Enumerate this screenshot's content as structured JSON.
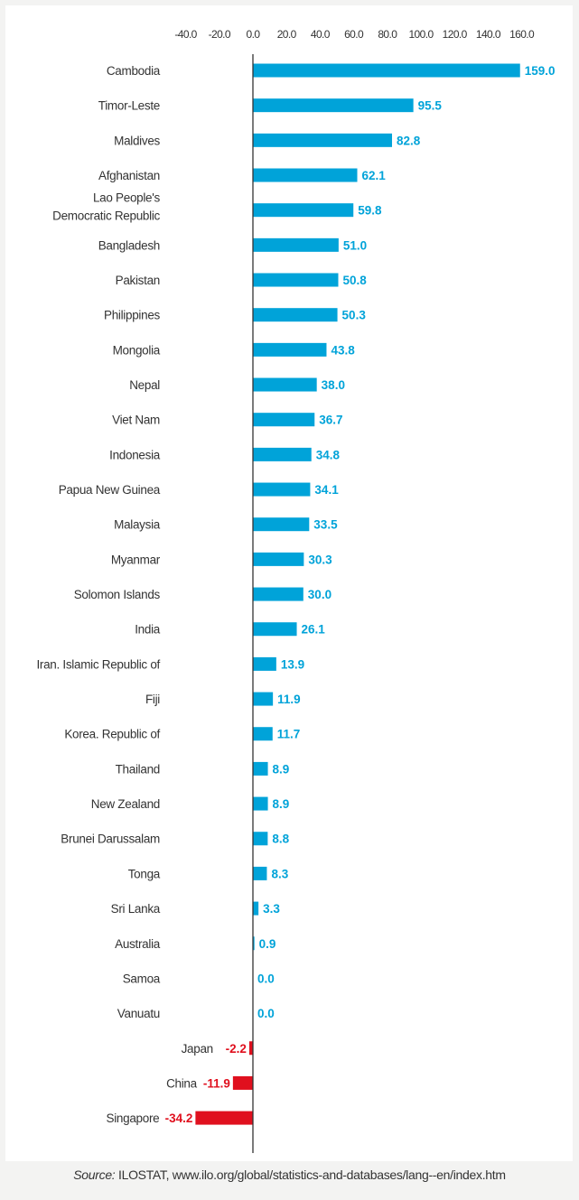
{
  "chart_data": {
    "type": "bar",
    "orientation": "horizontal",
    "categories": [
      "Cambodia",
      "Timor-Leste",
      "Maldives",
      "Afghanistan",
      "Lao People's\nDemocratic Republic",
      "Bangladesh",
      "Pakistan",
      "Philippines",
      "Mongolia",
      "Nepal",
      "Viet Nam",
      "Indonesia",
      "Papua New Guinea",
      "Malaysia",
      "Myanmar",
      "Solomon Islands",
      "India",
      "Iran. Islamic Republic of",
      "Fiji",
      "Korea.  Republic of",
      "Thailand",
      "New Zealand",
      "Brunei Darussalam",
      "Tonga",
      "Sri Lanka",
      "Australia",
      "Samoa",
      "Vanuatu",
      "Japan",
      "China",
      "Singapore"
    ],
    "values": [
      159.0,
      95.5,
      82.8,
      62.1,
      59.8,
      51.0,
      50.8,
      50.3,
      43.8,
      38.0,
      36.7,
      34.8,
      34.1,
      33.5,
      30.3,
      30.0,
      26.1,
      13.9,
      11.9,
      11.7,
      8.9,
      8.9,
      8.8,
      8.3,
      3.3,
      0.9,
      0.0,
      0.0,
      -2.2,
      -11.9,
      -34.2
    ],
    "value_labels": [
      "159.0",
      "95.5",
      "82.8",
      "62.1",
      "59.8",
      "51.0",
      "50.8",
      "50.3",
      "43.8",
      "38.0",
      "36.7",
      "34.8",
      "34.1",
      "33.5",
      "30.3",
      "30.0",
      "26.1",
      "13.9",
      "11.9",
      "11.7",
      "8.9",
      "8.9",
      "8.8",
      "8.3",
      "3.3",
      "0.9",
      "0.0",
      "0.0",
      "-2.2",
      "-11.9",
      "-34.2"
    ],
    "x_ticks": [
      -40,
      -20,
      0,
      20,
      40,
      60,
      80,
      100,
      120,
      140,
      160
    ],
    "x_tick_labels": [
      "-40.0",
      "-20.0",
      "0.0",
      "20.0",
      "40.0",
      "60.0",
      "80.0",
      "100.0",
      "120.0",
      "140.0",
      "160.0"
    ],
    "xlim": [
      -40,
      160
    ],
    "axis_position": "top",
    "grid": false,
    "legend": "none",
    "colors": {
      "positive": "#00a3d9",
      "negative": "#e0101e",
      "axis": "#333333",
      "category_text": "#333333"
    }
  },
  "source": {
    "label": "Source:",
    "text": " ILOSTAT, www.ilo.org/global/statistics-and-databases/lang--en/index.htm"
  }
}
